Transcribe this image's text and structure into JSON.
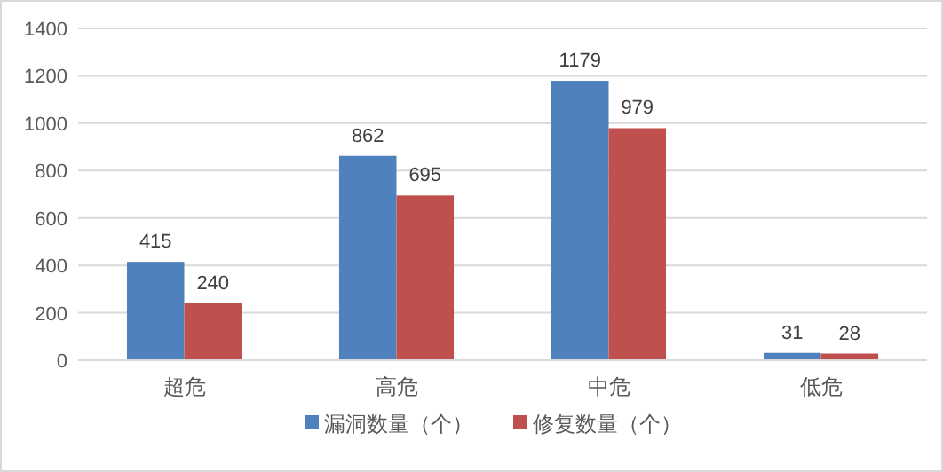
{
  "chart_data": {
    "type": "bar",
    "categories": [
      "超危",
      "高危",
      "中危",
      "低危"
    ],
    "series": [
      {
        "name": "漏洞数量（个）",
        "color": "#4f81bd",
        "values": [
          415,
          862,
          1179,
          31
        ]
      },
      {
        "name": "修复数量（个）",
        "color": "#c0504d",
        "values": [
          240,
          695,
          979,
          28
        ]
      }
    ],
    "ylim": [
      0,
      1400
    ],
    "yticks": [
      0,
      200,
      400,
      600,
      800,
      1000,
      1200,
      1400
    ],
    "grid": "y",
    "legend": "bottom",
    "data_labels": true
  }
}
